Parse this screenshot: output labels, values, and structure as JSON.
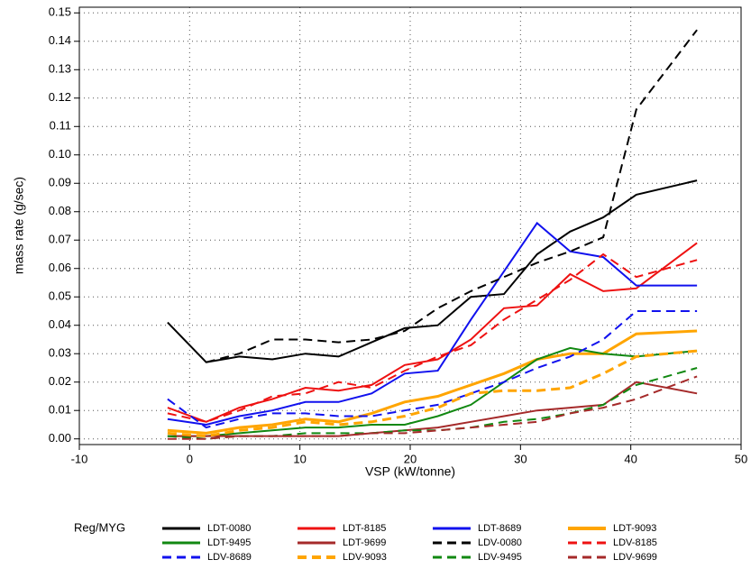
{
  "chart_data": {
    "type": "line",
    "xlabel": "VSP (kW/tonne)",
    "ylabel": "mass rate (g/sec)",
    "legend_title": "Reg/MYG",
    "x": [
      -2,
      1.5,
      4.5,
      7.5,
      10.5,
      13.5,
      16.5,
      19.5,
      22.5,
      25.5,
      28.5,
      31.5,
      34.5,
      37.5,
      40.5,
      46
    ],
    "xlim": [
      -10,
      50
    ],
    "xticks": [
      -10,
      0,
      10,
      20,
      30,
      40,
      50
    ],
    "ylim": [
      -0.002,
      0.152
    ],
    "yticks": [
      {
        "value": 0,
        "label": "0.00"
      },
      {
        "value": 0.01,
        "label": "0.01"
      },
      {
        "value": 0.02,
        "label": "0.02"
      },
      {
        "value": 0.03,
        "label": "0.03"
      },
      {
        "value": 0.04,
        "label": "0.04"
      },
      {
        "value": 0.05,
        "label": "0.05"
      },
      {
        "value": 0.06,
        "label": "0.06"
      },
      {
        "value": 0.07,
        "label": "0.07"
      },
      {
        "value": 0.08,
        "label": "0.08"
      },
      {
        "value": 0.09,
        "label": "0.09"
      },
      {
        "value": 0.1,
        "label": "0.10"
      },
      {
        "value": 0.11,
        "label": "0.11"
      },
      {
        "value": 0.12,
        "label": "0.12"
      },
      {
        "value": 0.13,
        "label": "0.13"
      },
      {
        "value": 0.14,
        "label": "0.14"
      },
      {
        "value": 0.15,
        "label": "0.15"
      }
    ],
    "grid": true,
    "legend_position": "bottom",
    "series": [
      {
        "name": "LDT-0080",
        "color": "#000000",
        "dashed": false,
        "values": [
          0.041,
          0.027,
          0.029,
          0.028,
          0.03,
          0.029,
          0.034,
          0.039,
          0.04,
          0.05,
          0.051,
          0.065,
          0.073,
          0.078,
          0.086,
          0.091
        ]
      },
      {
        "name": "LDT-8185",
        "color": "#ee1111",
        "dashed": false,
        "values": [
          0.011,
          0.006,
          0.011,
          0.014,
          0.018,
          0.017,
          0.019,
          0.026,
          0.028,
          0.035,
          0.046,
          0.047,
          0.058,
          0.052,
          0.053,
          0.069
        ]
      },
      {
        "name": "LDT-8689",
        "color": "#1111ee",
        "dashed": false,
        "values": [
          0.007,
          0.005,
          0.008,
          0.01,
          0.013,
          0.013,
          0.016,
          0.023,
          0.024,
          0.042,
          0.059,
          0.076,
          0.066,
          0.064,
          0.054,
          0.054
        ]
      },
      {
        "name": "LDT-9093",
        "color": "#ffa500",
        "dashed": false,
        "values": [
          0.003,
          0.002,
          0.004,
          0.005,
          0.007,
          0.006,
          0.009,
          0.013,
          0.015,
          0.019,
          0.023,
          0.028,
          0.03,
          0.03,
          0.037,
          0.038
        ]
      },
      {
        "name": "LDT-9495",
        "color": "#118811",
        "dashed": false,
        "values": [
          0.001,
          0.001,
          0.002,
          0.003,
          0.004,
          0.004,
          0.005,
          0.005,
          0.008,
          0.012,
          0.02,
          0.028,
          0.032,
          0.03,
          0.029,
          0.031
        ]
      },
      {
        "name": "LDT-9699",
        "color": "#a52a2a",
        "dashed": false,
        "values": [
          0.001,
          0.001,
          0.001,
          0.001,
          0.001,
          0.001,
          0.002,
          0.003,
          0.004,
          0.006,
          0.008,
          0.01,
          0.011,
          0.012,
          0.02,
          0.016
        ]
      },
      {
        "name": "LDV-0080",
        "color": "#000000",
        "dashed": true,
        "values": [
          null,
          0.027,
          0.03,
          0.035,
          0.035,
          0.034,
          0.035,
          0.038,
          0.046,
          0.052,
          0.057,
          0.062,
          0.066,
          0.071,
          0.116,
          0.144
        ]
      },
      {
        "name": "LDV-8185",
        "color": "#ee1111",
        "dashed": true,
        "values": [
          0.009,
          0.006,
          0.01,
          0.015,
          0.016,
          0.02,
          0.018,
          0.024,
          0.029,
          0.033,
          0.042,
          0.049,
          0.056,
          0.065,
          0.057,
          0.063
        ]
      },
      {
        "name": "LDV-8689",
        "color": "#1111ee",
        "dashed": true,
        "values": [
          0.014,
          0.004,
          0.007,
          0.009,
          0.009,
          0.008,
          0.008,
          0.01,
          0.012,
          0.016,
          0.02,
          0.025,
          0.029,
          0.035,
          0.045,
          0.045
        ]
      },
      {
        "name": "LDV-9093",
        "color": "#ffa500",
        "dashed": true,
        "values": [
          0.002,
          0.001,
          0.003,
          0.004,
          0.006,
          0.005,
          0.006,
          0.008,
          0.011,
          0.016,
          0.017,
          0.017,
          0.018,
          0.023,
          0.029,
          0.031
        ]
      },
      {
        "name": "LDV-9495",
        "color": "#118811",
        "dashed": true,
        "values": [
          0.001,
          0,
          0.001,
          0.001,
          0.002,
          0.002,
          0.002,
          0.003,
          0.003,
          0.004,
          0.006,
          0.007,
          0.009,
          0.012,
          0.019,
          0.025
        ]
      },
      {
        "name": "LDV-9699",
        "color": "#a52a2a",
        "dashed": true,
        "values": [
          0,
          0,
          0.001,
          0.001,
          0.001,
          0.001,
          0.002,
          0.002,
          0.003,
          0.004,
          0.005,
          0.006,
          0.009,
          0.011,
          0.014,
          0.022
        ]
      }
    ]
  }
}
